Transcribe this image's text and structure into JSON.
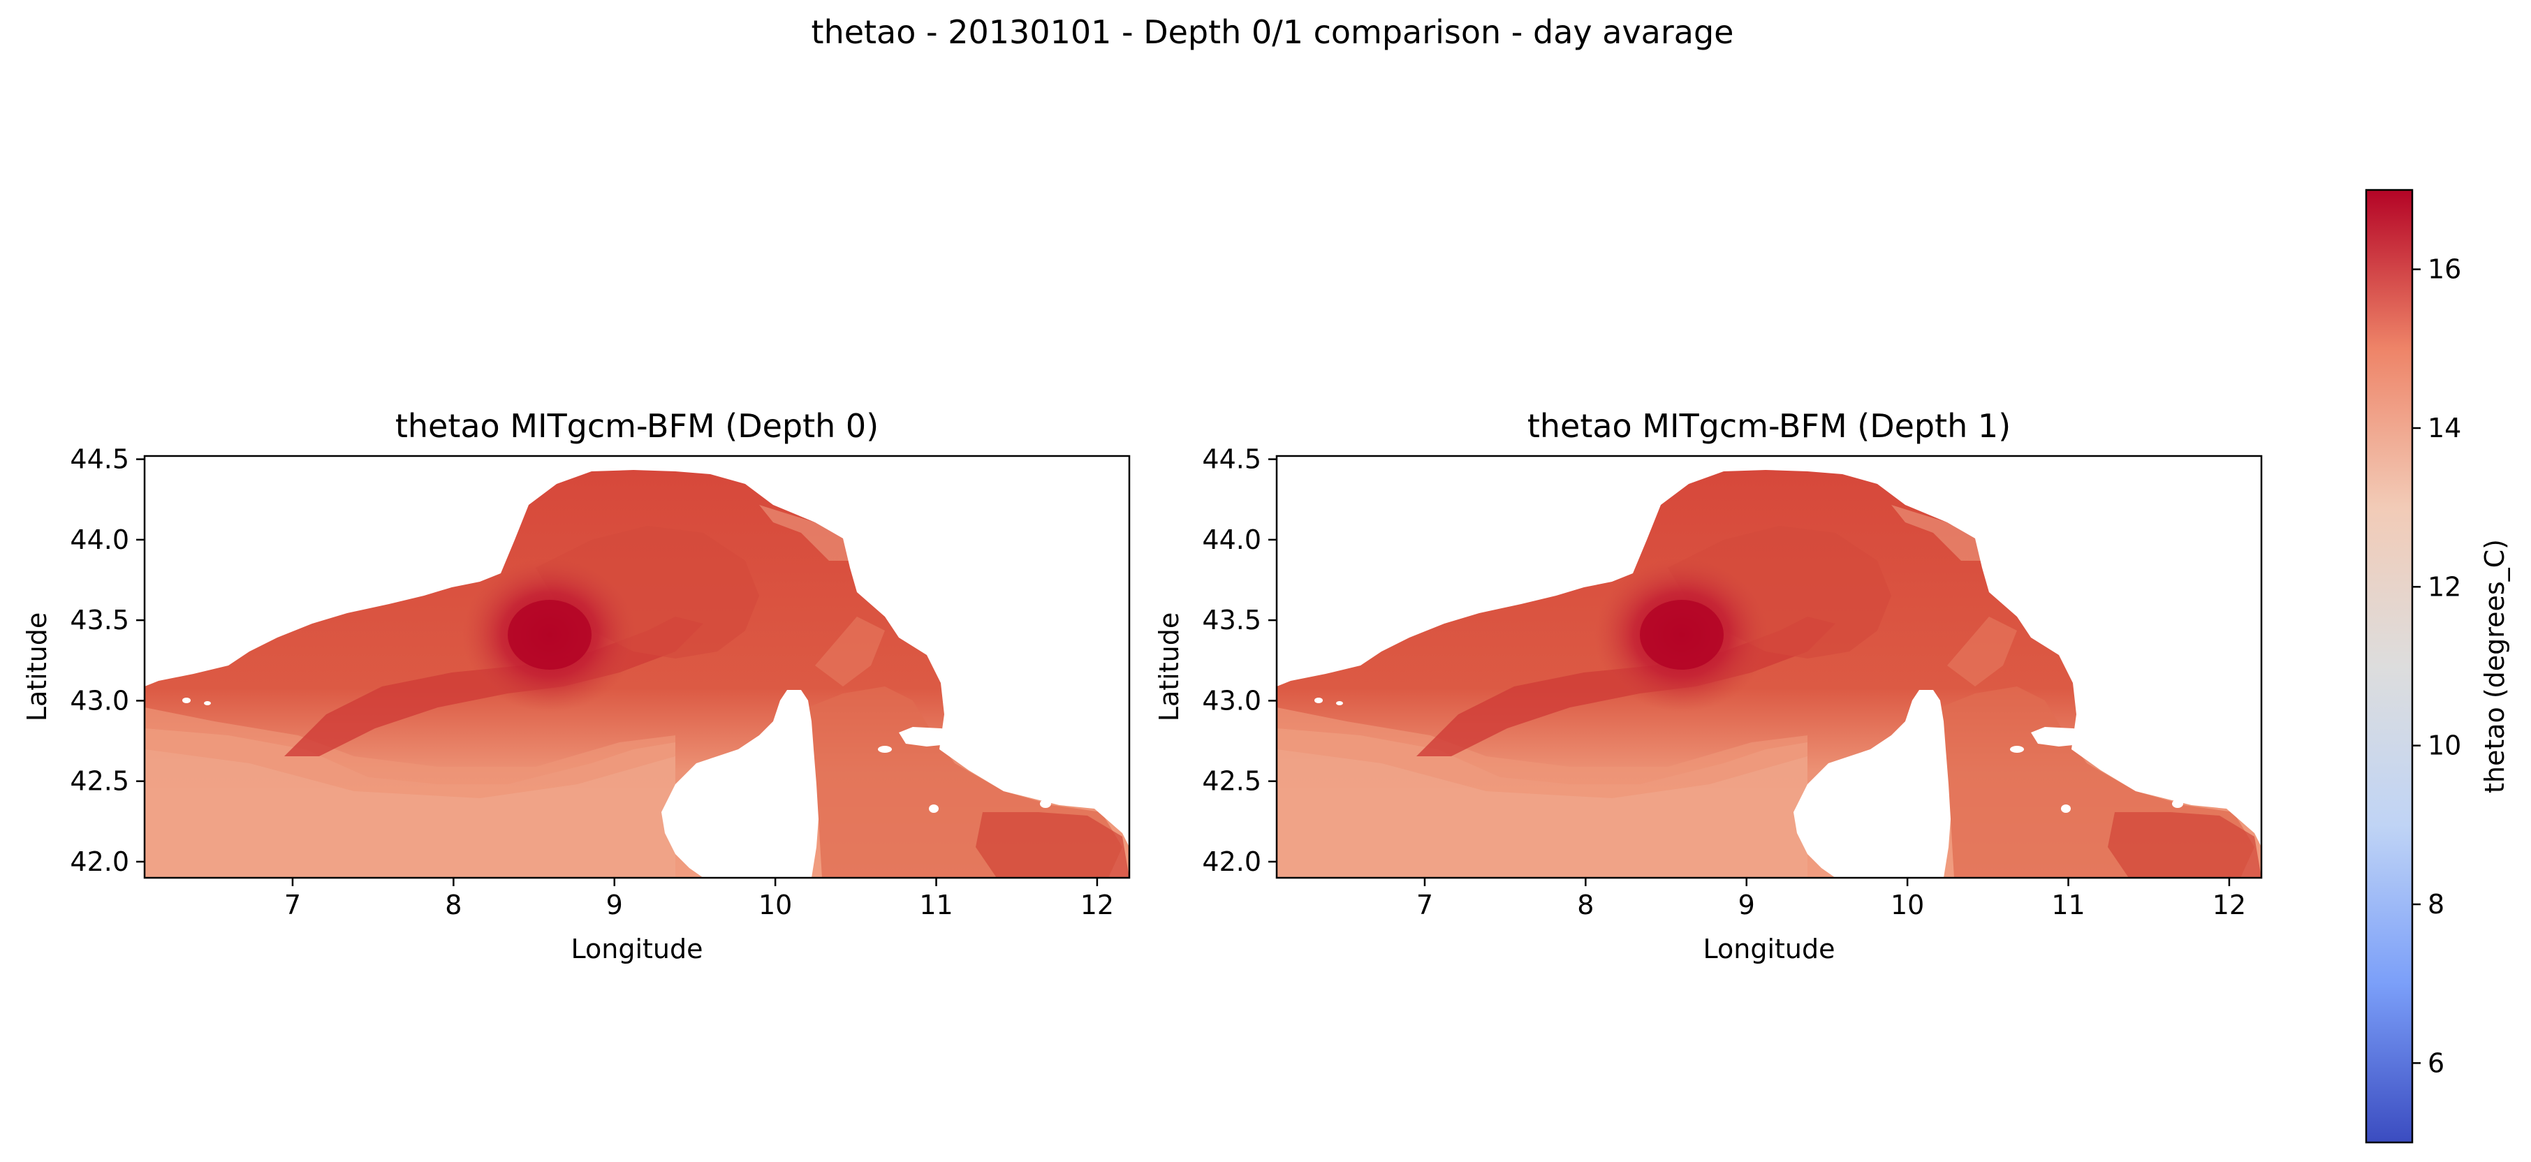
{
  "chart_data": {
    "suptitle": "thetao - 20130101 - Depth 0/1 comparison - day avarage",
    "panels": [
      {
        "type": "heatmap",
        "title": "thetao MITgcm-BFM (Depth 0)",
        "xlabel": "Longitude",
        "ylabel": "Latitude",
        "xlim": [
          6.08,
          12.2
        ],
        "ylim": [
          41.9,
          44.52
        ],
        "xticks": [
          7,
          8,
          9,
          10,
          11,
          12
        ],
        "yticks": [
          42.0,
          42.5,
          43.0,
          43.5,
          44.0,
          44.5
        ],
        "xtick_labels": [
          "7",
          "8",
          "9",
          "10",
          "11",
          "12"
        ],
        "ytick_labels": [
          "42.0",
          "42.5",
          "43.0",
          "43.5",
          "44.0",
          "44.5"
        ],
        "hot_spot": {
          "lon": 8.6,
          "lat": 43.38,
          "value": 17.0
        },
        "warm_band_value": 15.8,
        "coastal_value": 13.8
      },
      {
        "type": "heatmap",
        "title": "thetao MITgcm-BFM (Depth 1)",
        "xlabel": "Longitude",
        "ylabel": "Latitude",
        "xlim": [
          6.08,
          12.2
        ],
        "ylim": [
          41.9,
          44.52
        ],
        "xticks": [
          7,
          8,
          9,
          10,
          11,
          12
        ],
        "yticks": [
          42.0,
          42.5,
          43.0,
          43.5,
          44.0,
          44.5
        ],
        "xtick_labels": [
          "7",
          "8",
          "9",
          "10",
          "11",
          "12"
        ],
        "ytick_labels": [
          "42.0",
          "42.5",
          "43.0",
          "43.5",
          "44.0",
          "44.5"
        ],
        "hot_spot": {
          "lon": 8.6,
          "lat": 43.38,
          "value": 17.0
        },
        "warm_band_value": 15.8,
        "coastal_value": 13.8
      }
    ],
    "colorbar": {
      "label": "thetao (degrees_C)",
      "colormap": "coolwarm",
      "vmin": 5.0,
      "vmax": 17.0,
      "ticks": [
        6,
        8,
        10,
        12,
        14,
        16
      ],
      "tick_labels": [
        "6",
        "8",
        "10",
        "12",
        "14",
        "16"
      ],
      "colors": [
        "#3b4cc0",
        "#7b9ff9",
        "#c0d4f5",
        "#dddddd",
        "#f2cbb7",
        "#ee8468",
        "#b40426"
      ]
    }
  }
}
